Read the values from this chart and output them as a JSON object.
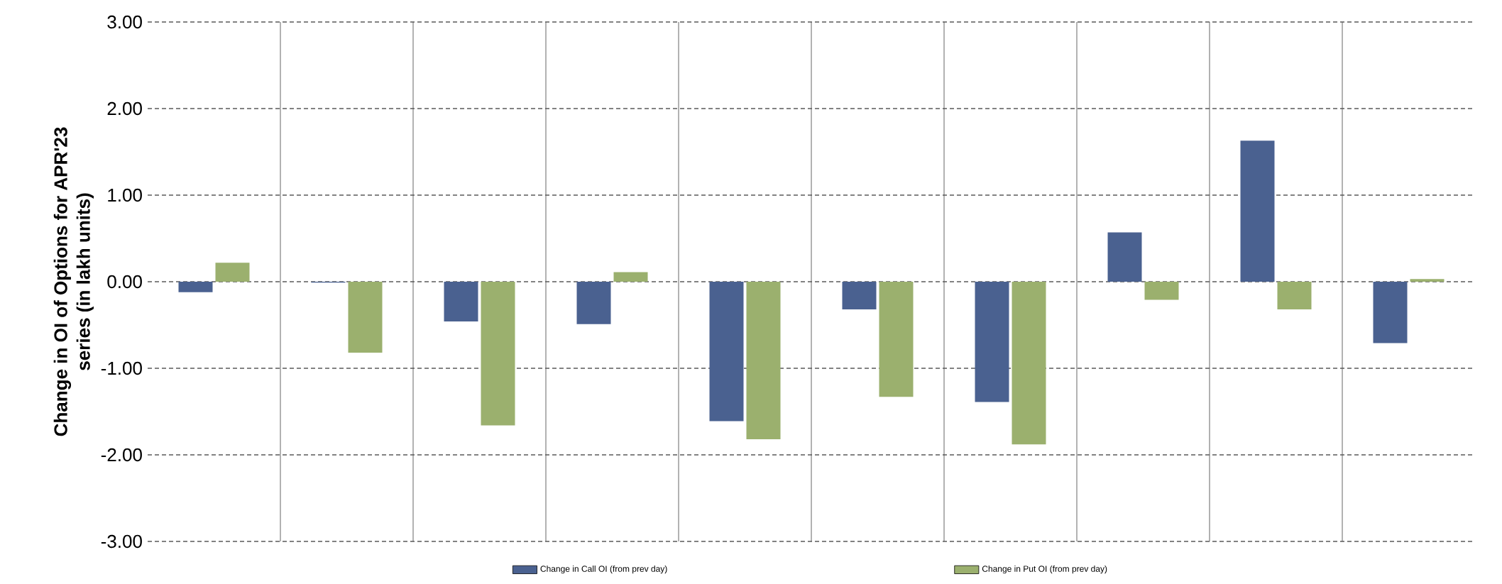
{
  "chart_data": {
    "type": "bar",
    "ylabel": "Change in OI of Options for APR'23 series (in lakh units)",
    "categories": [
      null,
      null,
      null,
      null,
      null,
      null,
      null,
      null,
      null,
      null
    ],
    "series": [
      {
        "name": "Change in Call OI (from prev day)",
        "color": "#4a6190",
        "values": [
          -0.12,
          -0.01,
          -0.46,
          -0.49,
          -1.61,
          -0.32,
          -1.39,
          0.57,
          1.63,
          -0.71
        ]
      },
      {
        "name": "Change in Put OI (from prev day)",
        "color": "#9bb06e",
        "values": [
          0.22,
          -0.82,
          -1.66,
          0.11,
          -1.82,
          -1.33,
          -1.88,
          -0.21,
          -0.32,
          0.03
        ]
      }
    ],
    "ylim": [
      -3,
      3
    ],
    "yticks": [
      {
        "value": -3,
        "label": "-3.00"
      },
      {
        "value": -2,
        "label": "-2.00"
      },
      {
        "value": -1,
        "label": "-1.00"
      },
      {
        "value": 0,
        "label": "0.00"
      },
      {
        "value": 1,
        "label": "1.00"
      },
      {
        "value": 2,
        "label": "2.00"
      },
      {
        "value": 3,
        "label": "3.00"
      }
    ],
    "grid": true,
    "legend": "bottom"
  }
}
